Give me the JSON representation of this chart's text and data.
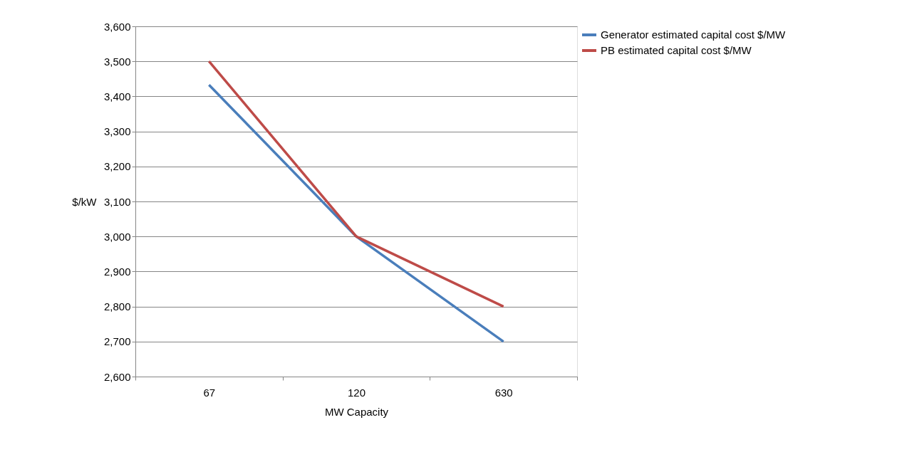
{
  "chart_data": {
    "type": "line",
    "xlabel": "MW Capacity",
    "ylabel": "$/kW",
    "categories": [
      "67",
      "120",
      "630"
    ],
    "series": [
      {
        "name": "Generator estimated capital cost $/MW",
        "color": "#4a7ebb",
        "values": [
          3433,
          3000,
          2700
        ]
      },
      {
        "name": "PB estimated capital cost $/MW",
        "color": "#be4b48",
        "values": [
          3500,
          3000,
          2800
        ]
      }
    ],
    "ylim": [
      2600,
      3600
    ],
    "yticks": [
      {
        "value": 2600,
        "label": "2,600"
      },
      {
        "value": 2700,
        "label": "2,700"
      },
      {
        "value": 2800,
        "label": "2,800"
      },
      {
        "value": 2900,
        "label": "2,900"
      },
      {
        "value": 3000,
        "label": "3,000"
      },
      {
        "value": 3100,
        "label": "3,100"
      },
      {
        "value": 3200,
        "label": "3,200"
      },
      {
        "value": 3300,
        "label": "3,300"
      },
      {
        "value": 3400,
        "label": "3,400"
      },
      {
        "value": 3500,
        "label": "3,500"
      },
      {
        "value": 3600,
        "label": "3,600"
      }
    ],
    "grid": "y",
    "legend": "right",
    "marker": "none",
    "line_style": "solid"
  }
}
